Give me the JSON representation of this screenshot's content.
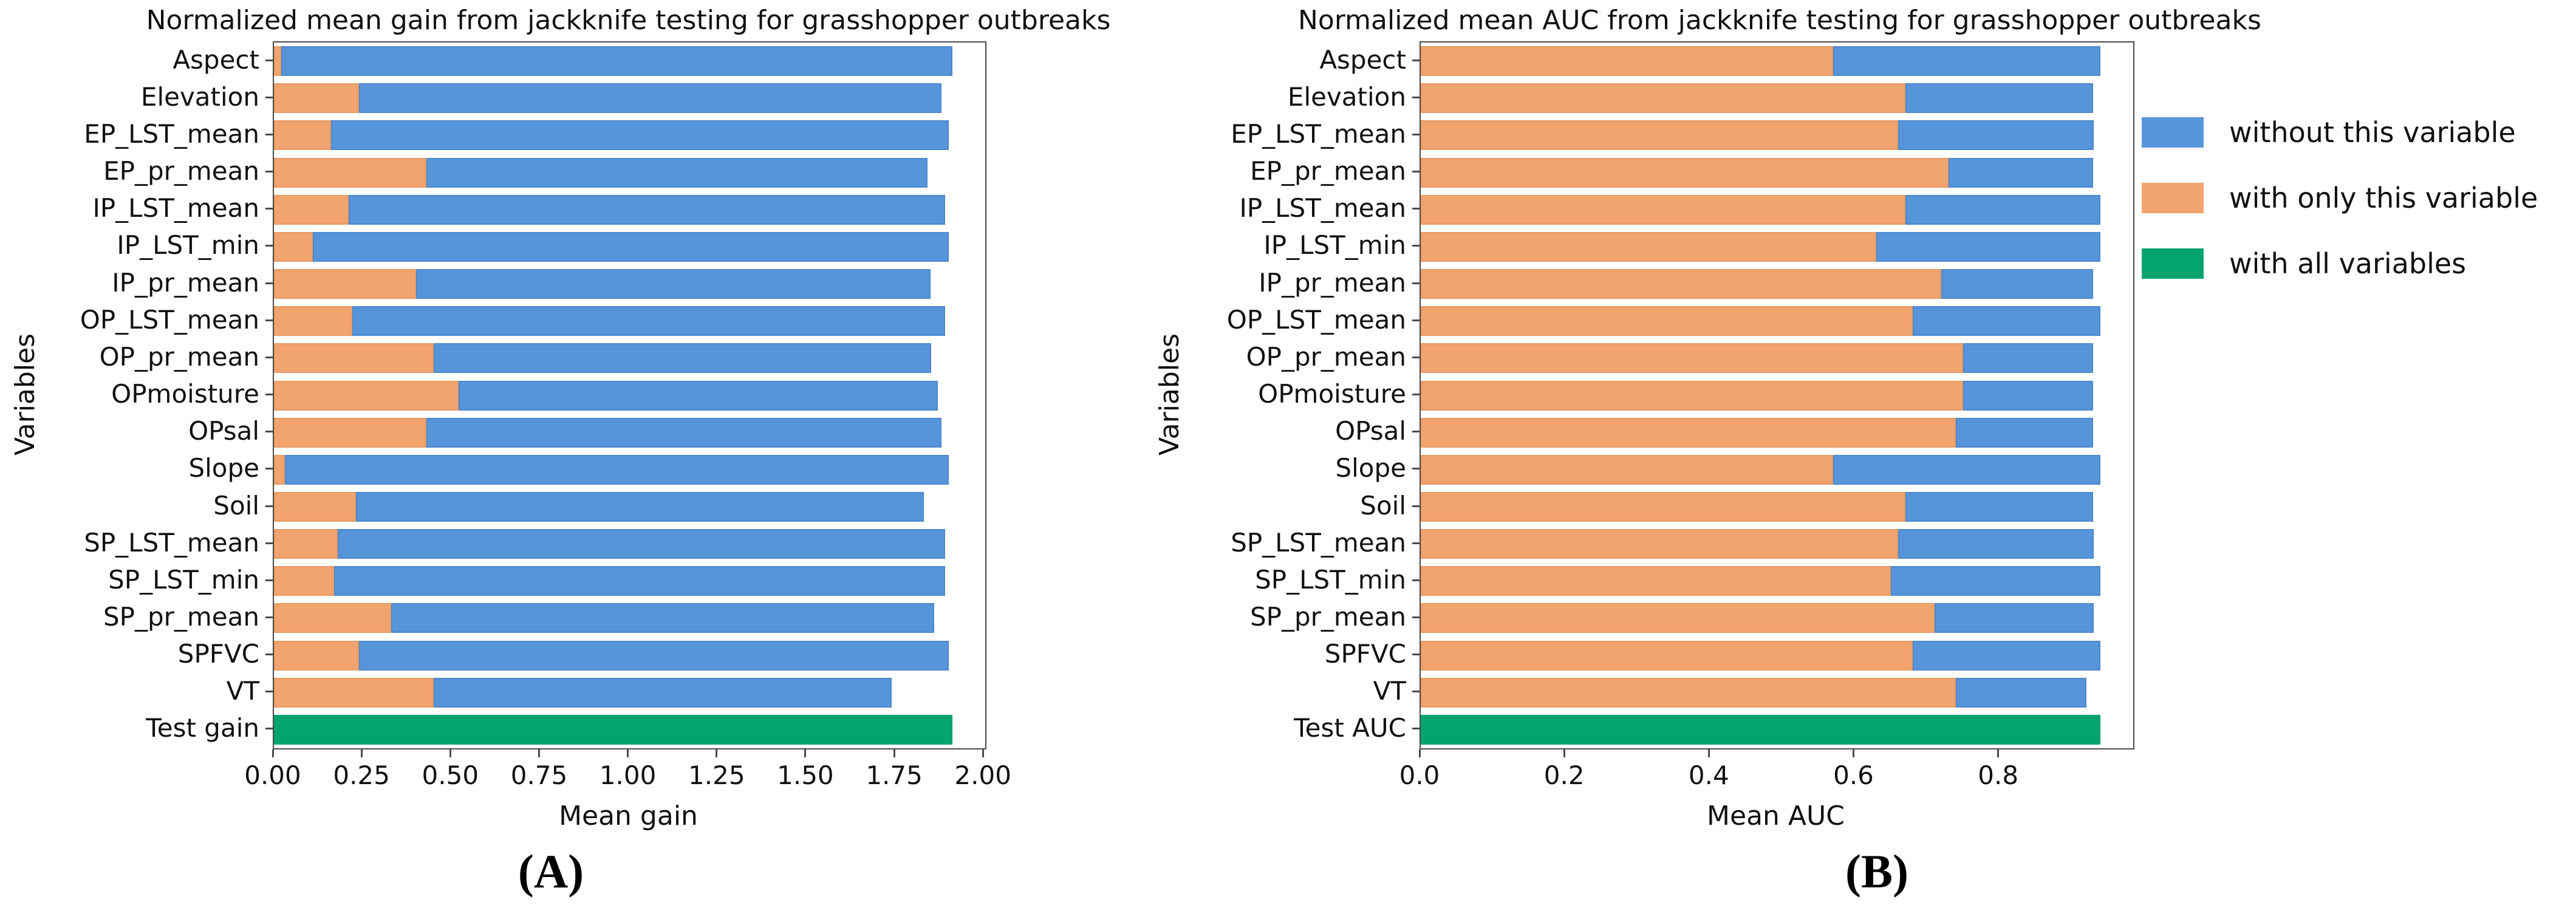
{
  "figure": {
    "colors": {
      "without": "#5795DB",
      "with_only": "#F2A46F",
      "all_vars": "#04A46C",
      "spine": "#4a4a4a"
    },
    "legend": {
      "position": "right-of-chart-B",
      "items": [
        {
          "key": "without",
          "label": "without this variable",
          "color": "#5795DB"
        },
        {
          "key": "with_only",
          "label": "with only this variable",
          "color": "#F2A46F"
        },
        {
          "key": "all_vars",
          "label": "with all variables",
          "color": "#04A46C"
        }
      ]
    }
  },
  "chart_data": [
    {
      "id": "A",
      "type": "bar",
      "orientation": "horizontal",
      "title": "Normalized mean gain from jackknife testing for grasshopper outbreaks",
      "xlabel": "Mean gain",
      "ylabel": "Variables",
      "caption": "(A)",
      "grid": false,
      "xlim": [
        0,
        2.003
      ],
      "xticks": {
        "labels": [
          "0.00",
          "0.25",
          "0.50",
          "0.75",
          "1.00",
          "1.25",
          "1.50",
          "1.75",
          "2.00"
        ],
        "values": [
          0,
          0.25,
          0.5,
          0.75,
          1.0,
          1.25,
          1.5,
          1.75,
          2.0
        ]
      },
      "categories": [
        "Aspect",
        "Elevation",
        "EP_LST_mean",
        "EP_pr_mean",
        "IP_LST_mean",
        "IP_LST_min",
        "IP_pr_mean",
        "OP_LST_mean",
        "OP_pr_mean",
        "OPmoisture",
        "OPsal",
        "Slope",
        "Soil",
        "SP_LST_mean",
        "SP_LST_min",
        "SP_pr_mean",
        "SPFVC",
        "VT"
      ],
      "series": [
        {
          "name": "with only this variable",
          "values": [
            0.02,
            0.24,
            0.16,
            0.43,
            0.21,
            0.11,
            0.4,
            0.22,
            0.45,
            0.52,
            0.43,
            0.03,
            0.23,
            0.18,
            0.17,
            0.33,
            0.24,
            0.45
          ]
        },
        {
          "name": "without this variable",
          "values": [
            1.91,
            1.88,
            1.9,
            1.84,
            1.89,
            1.9,
            1.85,
            1.89,
            1.85,
            1.87,
            1.88,
            1.9,
            1.83,
            1.89,
            1.89,
            1.86,
            1.9,
            1.74
          ]
        }
      ],
      "test_row": {
        "label": "Test gain",
        "value": 1.91,
        "series": "with all variables"
      }
    },
    {
      "id": "B",
      "type": "bar",
      "orientation": "horizontal",
      "title": "Normalized mean AUC from jackknife testing for grasshopper outbreaks",
      "xlabel": "Mean AUC",
      "ylabel": "Variables",
      "caption": "(B)",
      "grid": false,
      "xlim": [
        0,
        0.985
      ],
      "xticks": {
        "labels": [
          "0.0",
          "0.2",
          "0.4",
          "0.6",
          "0.8"
        ],
        "values": [
          0,
          0.2,
          0.4,
          0.6,
          0.8
        ]
      },
      "categories": [
        "Aspect",
        "Elevation",
        "EP_LST_mean",
        "EP_pr_mean",
        "IP_LST_mean",
        "IP_LST_min",
        "IP_pr_mean",
        "OP_LST_mean",
        "OP_pr_mean",
        "OPmoisture",
        "OPsal",
        "Slope",
        "Soil",
        "SP_LST_mean",
        "SP_LST_min",
        "SP_pr_mean",
        "SPFVC",
        "VT"
      ],
      "series": [
        {
          "name": "with only this variable",
          "values": [
            0.57,
            0.67,
            0.66,
            0.73,
            0.67,
            0.63,
            0.72,
            0.68,
            0.75,
            0.75,
            0.74,
            0.57,
            0.67,
            0.66,
            0.65,
            0.71,
            0.68,
            0.74
          ]
        },
        {
          "name": "without this variable",
          "values": [
            0.94,
            0.93,
            0.93,
            0.93,
            0.94,
            0.94,
            0.93,
            0.94,
            0.93,
            0.93,
            0.93,
            0.94,
            0.93,
            0.93,
            0.94,
            0.93,
            0.94,
            0.92
          ]
        }
      ],
      "test_row": {
        "label": "Test AUC",
        "value": 0.94,
        "series": "with all variables"
      }
    }
  ]
}
